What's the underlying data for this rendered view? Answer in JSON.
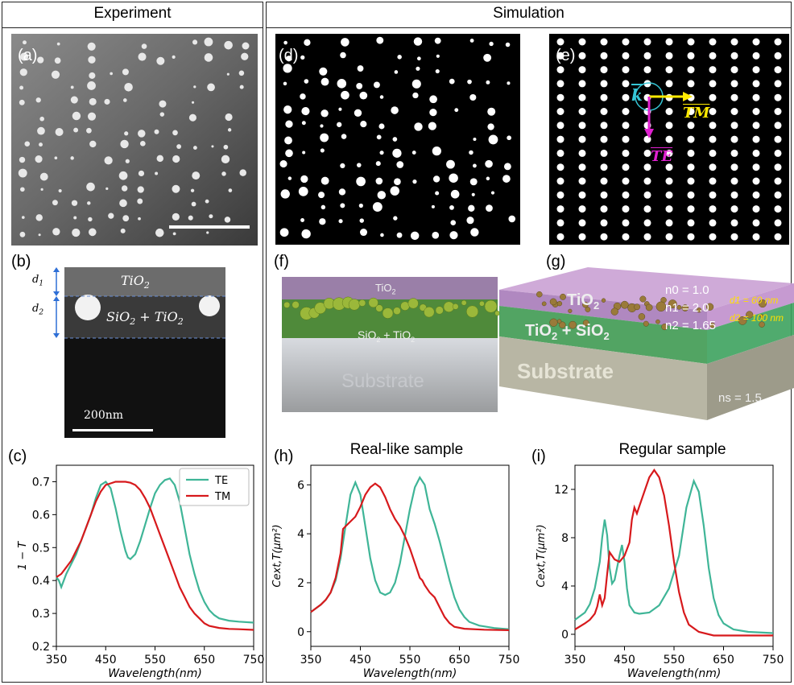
{
  "columns": {
    "experiment": "Experiment",
    "simulation": "Simulation"
  },
  "panel_labels": {
    "a": "(a)",
    "b": "(b)",
    "c": "(c)",
    "d": "(d)",
    "e": "(e)",
    "f": "(f)",
    "g": "(g)",
    "h": "(h)",
    "i": "(i)"
  },
  "panel_b": {
    "d1": "d1",
    "d2": "d2",
    "tio2": "TiO2",
    "mix": "SiO2 + TiO2",
    "scale": "200nm"
  },
  "panel_e": {
    "k": "k",
    "te": "TE",
    "tm": "TM"
  },
  "panel_f": {
    "tio2": "TiO2",
    "mix": "SiO2 + TiO2",
    "mix2": "SiO2",
    "substrate": "Substrate"
  },
  "panel_g": {
    "tio2": "TiO2",
    "mix": "TiO2 + SiO2",
    "substrate": "Substrate",
    "n0": "n0 = 1.0",
    "n1": "n1 = 2.0",
    "n2": "n2 = 1.65",
    "ns": "ns = 1.5",
    "d1": "d1 = 60 nm",
    "d2": "d2 = 100 nm"
  },
  "colors": {
    "TE": "#3fb597",
    "TM": "#d7191c"
  },
  "chart_data": [
    {
      "id": "c",
      "type": "line",
      "title": "",
      "xlabel": "Wavelength(nm)",
      "ylabel": "1 − T",
      "xlim": [
        350,
        750
      ],
      "ylim": [
        0.2,
        0.75
      ],
      "xticks": [
        350,
        450,
        550,
        650,
        750
      ],
      "yticks": [
        0.2,
        0.3,
        0.4,
        0.5,
        0.6,
        0.7
      ],
      "legend": "top-right",
      "series": [
        {
          "name": "TE",
          "color": "#3fb597",
          "points": [
            [
              350,
              0.41
            ],
            [
              355,
              0.4
            ],
            [
              360,
              0.38
            ],
            [
              365,
              0.4
            ],
            [
              370,
              0.42
            ],
            [
              380,
              0.45
            ],
            [
              390,
              0.48
            ],
            [
              400,
              0.52
            ],
            [
              410,
              0.56
            ],
            [
              420,
              0.6
            ],
            [
              430,
              0.65
            ],
            [
              440,
              0.69
            ],
            [
              450,
              0.7
            ],
            [
              460,
              0.68
            ],
            [
              470,
              0.62
            ],
            [
              480,
              0.55
            ],
            [
              490,
              0.49
            ],
            [
              495,
              0.47
            ],
            [
              500,
              0.465
            ],
            [
              510,
              0.48
            ],
            [
              520,
              0.52
            ],
            [
              530,
              0.57
            ],
            [
              540,
              0.62
            ],
            [
              550,
              0.665
            ],
            [
              560,
              0.69
            ],
            [
              570,
              0.705
            ],
            [
              580,
              0.71
            ],
            [
              590,
              0.69
            ],
            [
              600,
              0.64
            ],
            [
              610,
              0.56
            ],
            [
              620,
              0.48
            ],
            [
              630,
              0.42
            ],
            [
              640,
              0.37
            ],
            [
              650,
              0.335
            ],
            [
              660,
              0.31
            ],
            [
              670,
              0.295
            ],
            [
              680,
              0.285
            ],
            [
              700,
              0.278
            ],
            [
              720,
              0.275
            ],
            [
              750,
              0.272
            ]
          ]
        },
        {
          "name": "TM",
          "color": "#d7191c",
          "points": [
            [
              350,
              0.41
            ],
            [
              360,
              0.42
            ],
            [
              370,
              0.44
            ],
            [
              380,
              0.46
            ],
            [
              390,
              0.49
            ],
            [
              400,
              0.52
            ],
            [
              410,
              0.56
            ],
            [
              420,
              0.6
            ],
            [
              430,
              0.64
            ],
            [
              440,
              0.67
            ],
            [
              450,
              0.69
            ],
            [
              460,
              0.695
            ],
            [
              470,
              0.7
            ],
            [
              480,
              0.7
            ],
            [
              490,
              0.7
            ],
            [
              500,
              0.697
            ],
            [
              510,
              0.69
            ],
            [
              520,
              0.675
            ],
            [
              530,
              0.65
            ],
            [
              540,
              0.62
            ],
            [
              550,
              0.58
            ],
            [
              560,
              0.54
            ],
            [
              570,
              0.5
            ],
            [
              580,
              0.46
            ],
            [
              590,
              0.42
            ],
            [
              600,
              0.38
            ],
            [
              610,
              0.35
            ],
            [
              620,
              0.32
            ],
            [
              630,
              0.3
            ],
            [
              640,
              0.285
            ],
            [
              650,
              0.27
            ],
            [
              660,
              0.262
            ],
            [
              680,
              0.256
            ],
            [
              700,
              0.253
            ],
            [
              720,
              0.252
            ],
            [
              750,
              0.25
            ]
          ]
        }
      ]
    },
    {
      "id": "h",
      "type": "line",
      "title": "Real-like sample",
      "xlabel": "Wavelength(nm)",
      "ylabel": "Cext,T(μm²)",
      "xlim": [
        350,
        750
      ],
      "ylim": [
        -0.6,
        6.8
      ],
      "xticks": [
        350,
        450,
        550,
        650,
        750
      ],
      "yticks": [
        0,
        2,
        4,
        6
      ],
      "series": [
        {
          "name": "TE",
          "color": "#3fb597",
          "points": [
            [
              350,
              0.8
            ],
            [
              370,
              1.1
            ],
            [
              380,
              1.3
            ],
            [
              390,
              1.6
            ],
            [
              400,
              2.1
            ],
            [
              410,
              3.0
            ],
            [
              420,
              4.3
            ],
            [
              430,
              5.6
            ],
            [
              440,
              6.1
            ],
            [
              450,
              5.6
            ],
            [
              460,
              4.3
            ],
            [
              470,
              3.0
            ],
            [
              480,
              2.1
            ],
            [
              490,
              1.6
            ],
            [
              500,
              1.5
            ],
            [
              510,
              1.6
            ],
            [
              520,
              2.0
            ],
            [
              530,
              2.8
            ],
            [
              540,
              3.9
            ],
            [
              550,
              5.0
            ],
            [
              560,
              5.9
            ],
            [
              570,
              6.3
            ],
            [
              580,
              6.0
            ],
            [
              590,
              5.0
            ],
            [
              600,
              4.4
            ],
            [
              610,
              3.7
            ],
            [
              620,
              2.9
            ],
            [
              630,
              2.1
            ],
            [
              640,
              1.4
            ],
            [
              650,
              0.9
            ],
            [
              660,
              0.6
            ],
            [
              670,
              0.4
            ],
            [
              690,
              0.25
            ],
            [
              720,
              0.15
            ],
            [
              750,
              0.1
            ]
          ]
        },
        {
          "name": "TM",
          "color": "#d7191c",
          "points": [
            [
              350,
              0.8
            ],
            [
              370,
              1.1
            ],
            [
              380,
              1.3
            ],
            [
              390,
              1.6
            ],
            [
              400,
              2.2
            ],
            [
              410,
              3.2
            ],
            [
              415,
              4.2
            ],
            [
              420,
              4.3
            ],
            [
              430,
              4.5
            ],
            [
              440,
              4.7
            ],
            [
              450,
              5.1
            ],
            [
              460,
              5.6
            ],
            [
              470,
              5.9
            ],
            [
              480,
              6.05
            ],
            [
              490,
              5.9
            ],
            [
              500,
              5.5
            ],
            [
              510,
              5.0
            ],
            [
              520,
              4.6
            ],
            [
              530,
              4.3
            ],
            [
              540,
              3.9
            ],
            [
              550,
              3.4
            ],
            [
              560,
              2.8
            ],
            [
              570,
              2.2
            ],
            [
              575,
              2.1
            ],
            [
              580,
              1.9
            ],
            [
              590,
              1.6
            ],
            [
              600,
              1.4
            ],
            [
              610,
              1.0
            ],
            [
              620,
              0.6
            ],
            [
              630,
              0.35
            ],
            [
              640,
              0.2
            ],
            [
              660,
              0.12
            ],
            [
              700,
              0.08
            ],
            [
              750,
              0.06
            ]
          ]
        }
      ]
    },
    {
      "id": "i",
      "type": "line",
      "title": "Regular sample",
      "xlabel": "Wavelength(nm)",
      "ylabel": "Cext,T(μm²)",
      "xlim": [
        350,
        750
      ],
      "ylim": [
        -1.0,
        14.0
      ],
      "xticks": [
        350,
        450,
        550,
        650,
        750
      ],
      "yticks": [
        0,
        4,
        8,
        12
      ],
      "series": [
        {
          "name": "TE",
          "color": "#3fb597",
          "points": [
            [
              350,
              1.2
            ],
            [
              370,
              1.8
            ],
            [
              380,
              2.5
            ],
            [
              390,
              3.8
            ],
            [
              400,
              6.0
            ],
            [
              405,
              8.0
            ],
            [
              410,
              9.5
            ],
            [
              415,
              8.2
            ],
            [
              420,
              5.5
            ],
            [
              425,
              4.2
            ],
            [
              430,
              4.5
            ],
            [
              440,
              6.5
            ],
            [
              445,
              7.4
            ],
            [
              450,
              6.0
            ],
            [
              455,
              3.8
            ],
            [
              460,
              2.4
            ],
            [
              470,
              1.8
            ],
            [
              480,
              1.7
            ],
            [
              500,
              1.8
            ],
            [
              520,
              2.4
            ],
            [
              540,
              3.8
            ],
            [
              560,
              6.5
            ],
            [
              575,
              10.5
            ],
            [
              590,
              12.7
            ],
            [
              600,
              11.8
            ],
            [
              610,
              9.0
            ],
            [
              620,
              5.5
            ],
            [
              630,
              3.0
            ],
            [
              640,
              1.6
            ],
            [
              650,
              0.9
            ],
            [
              670,
              0.4
            ],
            [
              700,
              0.2
            ],
            [
              750,
              0.1
            ]
          ]
        },
        {
          "name": "TM",
          "color": "#d7191c",
          "points": [
            [
              350,
              0.4
            ],
            [
              370,
              0.9
            ],
            [
              380,
              1.2
            ],
            [
              390,
              1.7
            ],
            [
              395,
              2.3
            ],
            [
              400,
              3.3
            ],
            [
              405,
              2.4
            ],
            [
              410,
              3.0
            ],
            [
              415,
              5.0
            ],
            [
              420,
              6.8
            ],
            [
              425,
              6.5
            ],
            [
              430,
              6.2
            ],
            [
              440,
              6.0
            ],
            [
              450,
              6.5
            ],
            [
              460,
              7.6
            ],
            [
              465,
              9.5
            ],
            [
              470,
              10.5
            ],
            [
              475,
              10.0
            ],
            [
              480,
              10.6
            ],
            [
              490,
              11.8
            ],
            [
              500,
              13.0
            ],
            [
              510,
              13.6
            ],
            [
              520,
              13.0
            ],
            [
              530,
              11.5
            ],
            [
              540,
              9.0
            ],
            [
              550,
              6.0
            ],
            [
              560,
              3.5
            ],
            [
              570,
              1.8
            ],
            [
              580,
              0.8
            ],
            [
              600,
              0.2
            ],
            [
              630,
              -0.1
            ],
            [
              700,
              -0.1
            ],
            [
              750,
              -0.1
            ]
          ]
        }
      ]
    }
  ]
}
